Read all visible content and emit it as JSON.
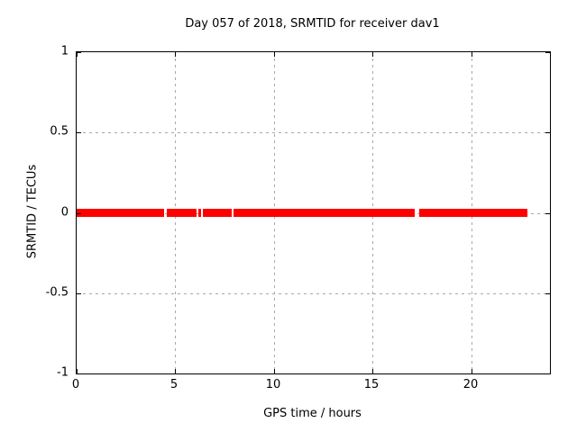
{
  "window": {
    "background": "#ffffff"
  },
  "colors": {
    "border": "#000000",
    "grid": "#a8a8a8",
    "text": "#000000",
    "series_red": "#ff0000"
  },
  "chart_data": {
    "type": "line",
    "title": "Day 057 of 2018, SRMTID for receiver dav1",
    "xlabel": "GPS time / hours",
    "ylabel": "SRMTID / TECUs",
    "xlim": [
      0,
      24
    ],
    "ylim": [
      -1,
      1
    ],
    "xticks": [
      0,
      5,
      10,
      15,
      20
    ],
    "yticks": [
      -1,
      -0.5,
      0,
      0.5,
      1
    ],
    "grid": true,
    "grid_style": "dashed",
    "legend_position": "none",
    "series": [
      {
        "name": "SRMTID",
        "color": "#ff0000",
        "y_value": 0,
        "segments_hours": [
          [
            0.0,
            4.44
          ],
          [
            4.57,
            6.07
          ],
          [
            6.18,
            6.3
          ],
          [
            6.41,
            7.85
          ],
          [
            7.96,
            17.16
          ],
          [
            17.36,
            22.85
          ]
        ]
      }
    ]
  }
}
